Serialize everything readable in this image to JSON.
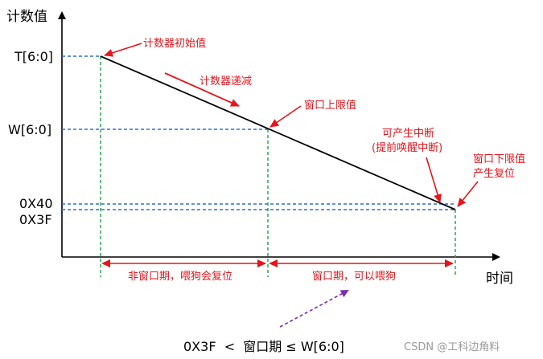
{
  "axes": {
    "y_label": "计数值",
    "x_label": "时间"
  },
  "levels": {
    "t": "T[6:0]",
    "w": "W[6:0]",
    "x40": "0X40",
    "x3f": "0X3F"
  },
  "annotations": {
    "initial": "计数器初始值",
    "decrement": "计数器递减",
    "upper_limit": "窗口上限值",
    "interrupt_line1": "可产生中断",
    "interrupt_line2": "(提前唤醒中断)",
    "lower_reset_line1": "窗口下限值",
    "lower_reset_line2": "产生复位"
  },
  "periods": {
    "non_window": "非窗口期，喂狗会复位",
    "window": "窗口期，可以喂狗"
  },
  "formula": "0X3F  <  窗口期 ≤ W[6:0]",
  "watermark": "CSDN @工科边角料",
  "colors": {
    "red": "#e8141c",
    "blue_dash": "#2f6fd0",
    "green_dash": "#1aa34a",
    "purple": "#7a2bb5",
    "black": "#000000"
  }
}
